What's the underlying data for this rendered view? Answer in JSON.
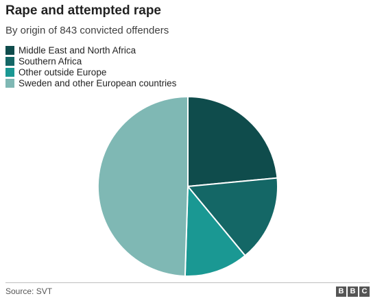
{
  "title": "Rape and attempted rape",
  "subtitle": "By origin of 843 convicted offenders",
  "source": "Source: SVT",
  "logo": [
    "B",
    "B",
    "C"
  ],
  "chart_data": {
    "type": "pie",
    "title": "Rape and attempted rape",
    "subtitle": "By origin of 843 convicted offenders",
    "legend_position": "top-left",
    "start_angle_deg": 0,
    "direction": "clockwise",
    "slices": [
      {
        "label": "Middle East and North Africa",
        "value": 23.5,
        "color": "#0f4c4c"
      },
      {
        "label": "Southern Africa",
        "value": 15.5,
        "color": "#146766"
      },
      {
        "label": "Other outside Europe",
        "value": 11.5,
        "color": "#1a9893"
      },
      {
        "label": "Sweden and other European countries",
        "value": 49.5,
        "color": "#7fb8b4"
      }
    ]
  }
}
